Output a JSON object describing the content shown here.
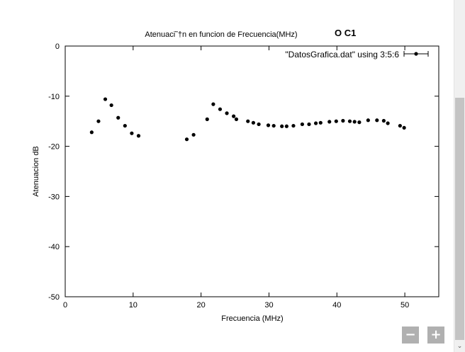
{
  "chart_data": {
    "type": "scatter",
    "title": "Atenuaci˜†n en funcion de Frecuencia(MHz)",
    "xlabel": "Frecuencia (MHz)",
    "ylabel": "Atenuacion dB",
    "xlim": [
      0,
      55
    ],
    "ylim": [
      -50,
      0
    ],
    "x_ticks": [
      0,
      10,
      20,
      30,
      40,
      50
    ],
    "y_ticks": [
      0,
      -10,
      -20,
      -30,
      -40,
      -50
    ],
    "grid": false,
    "legend_position": "top-right",
    "series": [
      {
        "name": "\"DatosGrafica.dat\" using 3:5:6",
        "color": "#000000",
        "points": [
          [
            3.9,
            -17.2
          ],
          [
            4.9,
            -15.0
          ],
          [
            5.9,
            -10.6
          ],
          [
            6.8,
            -11.8
          ],
          [
            7.8,
            -14.3
          ],
          [
            8.8,
            -15.9
          ],
          [
            9.8,
            -17.4
          ],
          [
            10.8,
            -17.9
          ],
          [
            17.9,
            -18.6
          ],
          [
            18.9,
            -17.7
          ],
          [
            20.9,
            -14.6
          ],
          [
            21.8,
            -11.6
          ],
          [
            22.8,
            -12.6
          ],
          [
            23.8,
            -13.4
          ],
          [
            24.8,
            -14.0
          ],
          [
            25.2,
            -14.6
          ],
          [
            26.9,
            -15.0
          ],
          [
            27.7,
            -15.3
          ],
          [
            28.5,
            -15.6
          ],
          [
            29.9,
            -15.8
          ],
          [
            30.7,
            -15.9
          ],
          [
            31.9,
            -16.0
          ],
          [
            32.6,
            -16.0
          ],
          [
            33.6,
            -15.9
          ],
          [
            34.9,
            -15.6
          ],
          [
            35.9,
            -15.6
          ],
          [
            36.9,
            -15.4
          ],
          [
            37.6,
            -15.3
          ],
          [
            38.9,
            -15.1
          ],
          [
            39.9,
            -15.0
          ],
          [
            40.9,
            -14.9
          ],
          [
            41.9,
            -15.0
          ],
          [
            42.6,
            -15.1
          ],
          [
            43.3,
            -15.2
          ],
          [
            44.6,
            -14.8
          ],
          [
            45.9,
            -14.8
          ],
          [
            46.9,
            -14.9
          ],
          [
            47.5,
            -15.4
          ],
          [
            49.3,
            -15.9
          ],
          [
            49.9,
            -16.3
          ]
        ]
      }
    ]
  },
  "annotation": "O C1",
  "zoom": {
    "minus_label": "−",
    "plus_label": "+"
  },
  "scroll": {
    "down_glyph": "⌄"
  }
}
